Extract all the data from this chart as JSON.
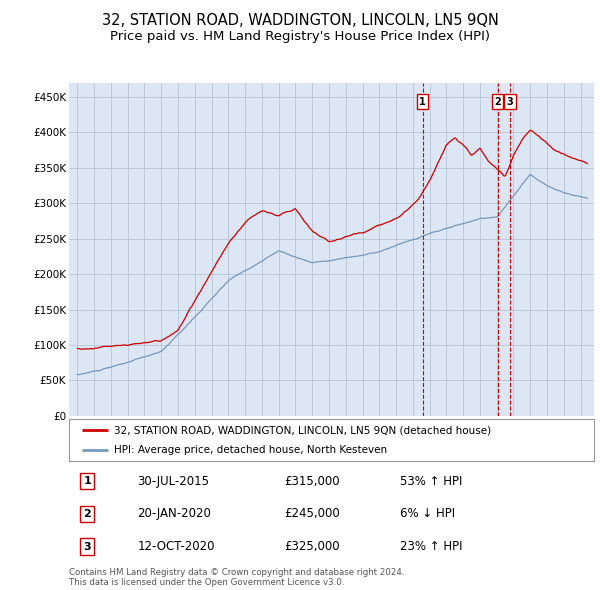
{
  "title": "32, STATION ROAD, WADDINGTON, LINCOLN, LN5 9QN",
  "subtitle": "Price paid vs. HM Land Registry's House Price Index (HPI)",
  "ylabel_ticks": [
    "£0",
    "£50K",
    "£100K",
    "£150K",
    "£200K",
    "£250K",
    "£300K",
    "£350K",
    "£400K",
    "£450K"
  ],
  "ytick_values": [
    0,
    50000,
    100000,
    150000,
    200000,
    250000,
    300000,
    350000,
    400000,
    450000
  ],
  "ylim": [
    0,
    470000
  ],
  "xlim_start": 1994.5,
  "xlim_end": 2025.8,
  "plot_bg_color": "#dce6f5",
  "grid_color": "#b0bfd0",
  "legend_label_red": "32, STATION ROAD, WADDINGTON, LINCOLN, LN5 9QN (detached house)",
  "legend_label_blue": "HPI: Average price, detached house, North Kesteven",
  "red_color": "#cc0000",
  "blue_color": "#7799bb",
  "sale_markers": [
    {
      "label": "1",
      "x": 2015.58,
      "date": "30-JUL-2015",
      "price": "£315,000",
      "pct": "53%",
      "dir": "↑"
    },
    {
      "label": "2",
      "x": 2020.05,
      "date": "20-JAN-2020",
      "price": "£245,000",
      "pct": "6%",
      "dir": "↓"
    },
    {
      "label": "3",
      "x": 2020.79,
      "date": "12-OCT-2020",
      "price": "£325,000",
      "pct": "23%",
      "dir": "↑"
    }
  ],
  "footer": "Contains HM Land Registry data © Crown copyright and database right 2024.\nThis data is licensed under the Open Government Licence v3.0.",
  "title_fontsize": 10.5,
  "subtitle_fontsize": 9.5
}
